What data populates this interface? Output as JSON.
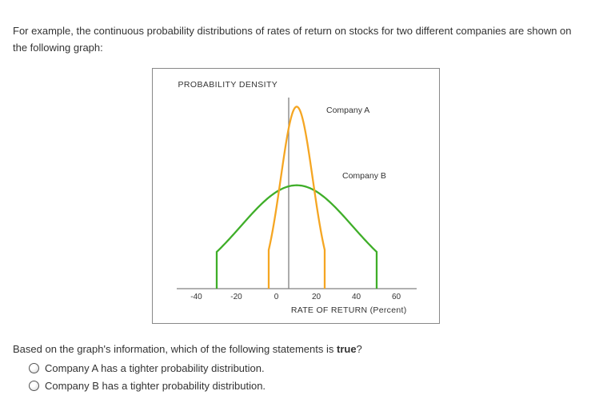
{
  "intro": "For example, the continuous probability distributions of rates of return on stocks for two different companies are shown on the following graph:",
  "chart": {
    "type": "line",
    "ylabel": "PROBABILITY DENSITY",
    "xlabel": "RATE OF RETURN (Percent)",
    "xlim": [
      -50,
      70
    ],
    "plot_height_units": 1.05,
    "xticks": [
      -40,
      -20,
      0,
      20,
      40,
      60
    ],
    "axis_color": "#808080",
    "background_color": "#ffffff",
    "axis_line_width": 1.3,
    "font_size_labels": 10.5,
    "font_size_ticks": 10,
    "curve_line_width": 2.3,
    "y_axis_x": 6,
    "series": {
      "A": {
        "label": "Company A",
        "label_pos": {
          "x": 25,
          "y": 0.98
        },
        "color": "#f5a623",
        "mean": 10,
        "sigma": 8,
        "peak": 1.0,
        "x_start": -4,
        "x_end": 24
      },
      "B": {
        "label": "Company B",
        "label_pos": {
          "x": 33,
          "y": 0.62
        },
        "color": "#3fae29",
        "mean": 10,
        "sigma": 28,
        "peak": 0.57,
        "x_start": -30,
        "x_end": 50
      }
    }
  },
  "question_prefix": "Based on the graph's information, which of the following statements is ",
  "question_bold": "true",
  "question_suffix": "?",
  "options": [
    "Company A has a tighter probability distribution.",
    "Company B has a tighter probability distribution."
  ]
}
